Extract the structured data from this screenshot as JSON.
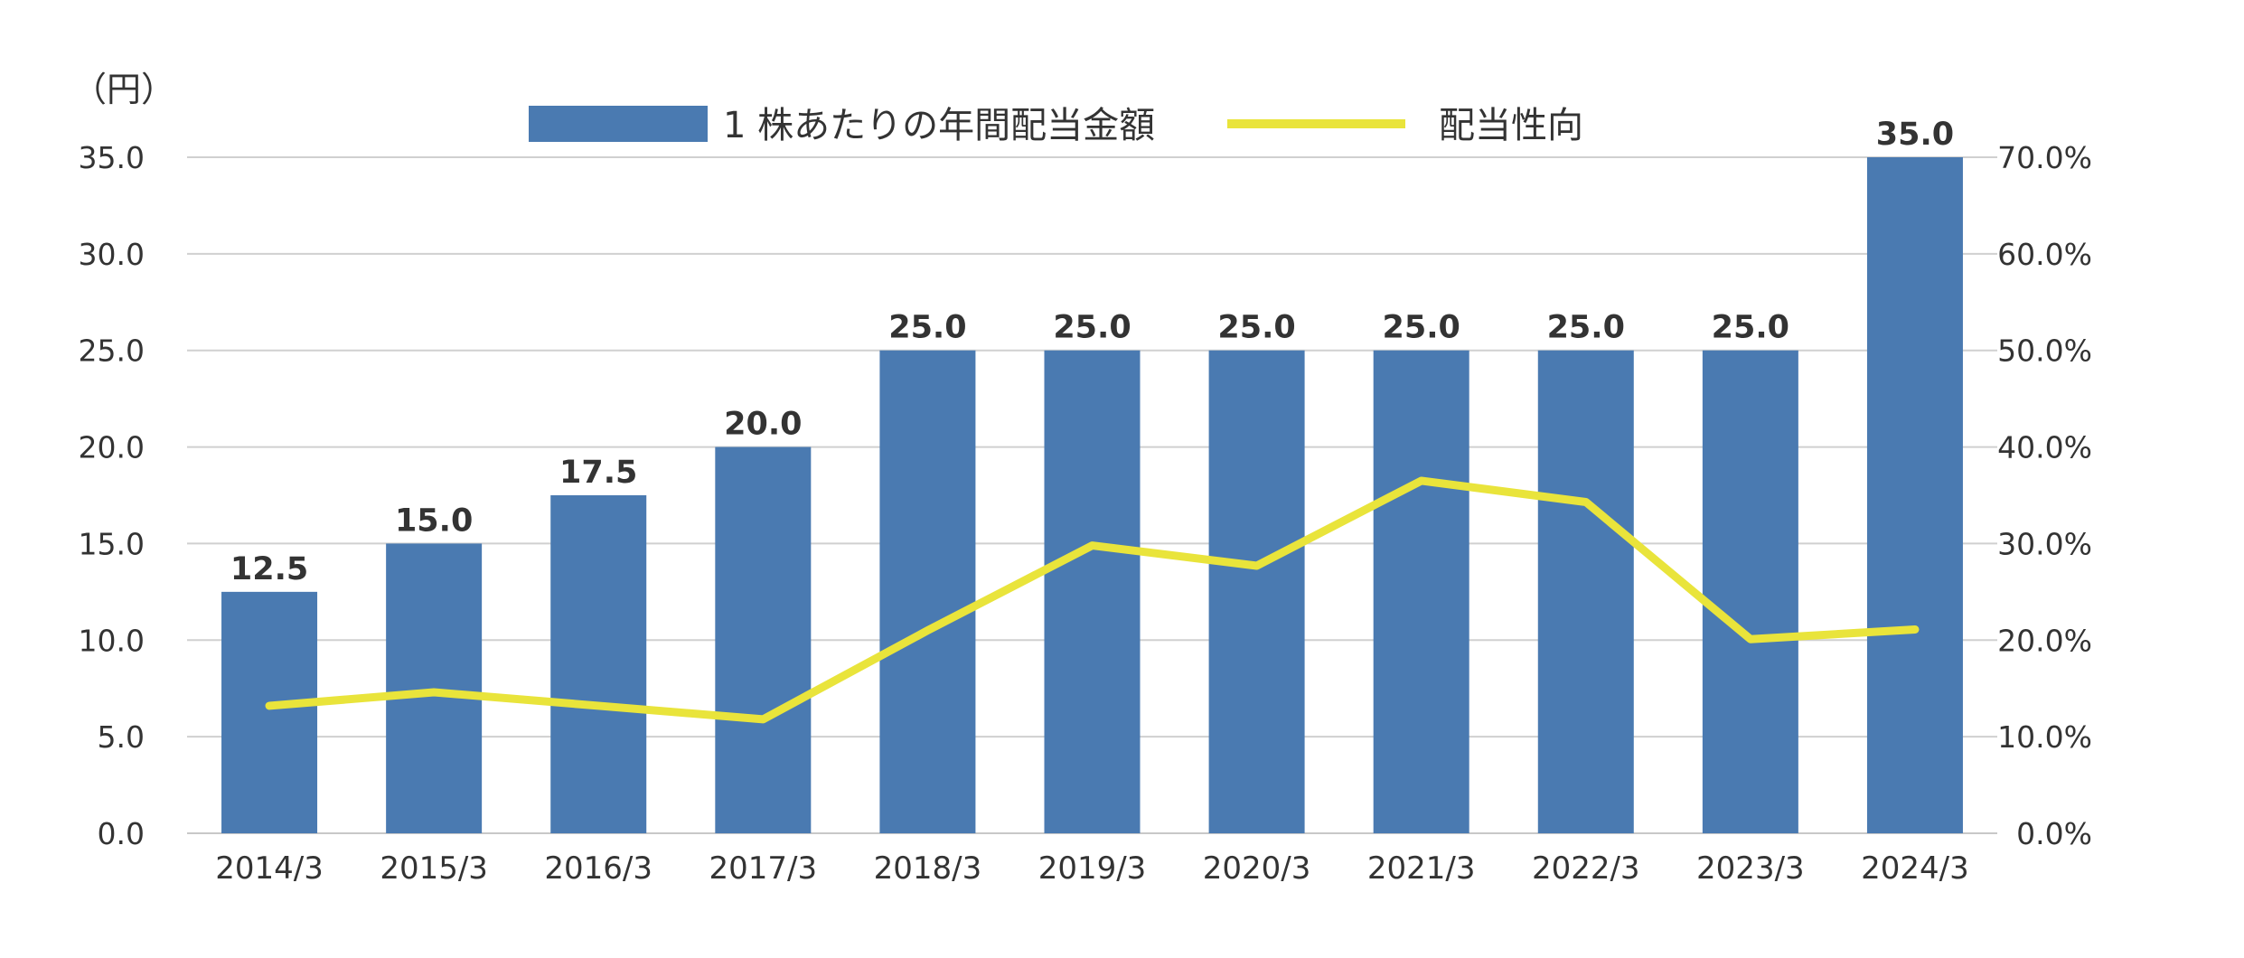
{
  "chart_data": {
    "type": "bar",
    "unit_label": "（円）",
    "categories": [
      "2014/3",
      "2015/3",
      "2016/3",
      "2017/3",
      "2018/3",
      "2019/3",
      "2020/3",
      "2021/3",
      "2022/3",
      "2023/3",
      "2024/3"
    ],
    "series": [
      {
        "name": "1 株あたりの年間配当金額",
        "type": "bar",
        "axis": "left",
        "color": "#4a7ab1",
        "values": [
          12.5,
          15.0,
          17.5,
          20.0,
          25.0,
          25.0,
          25.0,
          25.0,
          25.0,
          25.0,
          35.0
        ],
        "labels": [
          "12.5",
          "15.0",
          "17.5",
          "20.0",
          "25.0",
          "25.0",
          "25.0",
          "25.0",
          "25.0",
          "25.0",
          "35.0"
        ]
      },
      {
        "name": "配当性向",
        "type": "line",
        "axis": "right",
        "color": "#e9e43b",
        "values": [
          13.2,
          14.6,
          13.2,
          11.8,
          21.0,
          29.8,
          27.7,
          36.5,
          34.3,
          20.1,
          21.1
        ]
      }
    ],
    "y_left": {
      "lim": [
        0,
        35
      ],
      "ticks": [
        "0.0",
        "5.0",
        "10.0",
        "15.0",
        "20.0",
        "25.0",
        "30.0",
        "35.0"
      ]
    },
    "y_right": {
      "lim": [
        0,
        70
      ],
      "ticks": [
        "0.0%",
        "10.0%",
        "20.0%",
        "30.0%",
        "40.0%",
        "50.0%",
        "60.0%",
        "70.0%"
      ]
    },
    "grid": true,
    "legend_position": "top-center"
  }
}
